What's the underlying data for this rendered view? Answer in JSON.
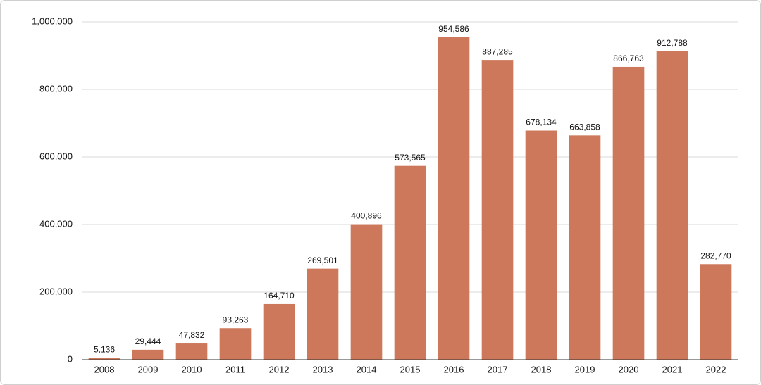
{
  "chart_data": {
    "type": "bar",
    "categories": [
      "2008",
      "2009",
      "2010",
      "2011",
      "2012",
      "2013",
      "2014",
      "2015",
      "2016",
      "2017",
      "2018",
      "2019",
      "2020",
      "2021",
      "2022"
    ],
    "values": [
      5136,
      29444,
      47832,
      93263,
      164710,
      269501,
      400896,
      573565,
      954586,
      887285,
      678134,
      663858,
      866763,
      912788,
      282770
    ],
    "value_labels": [
      "5,136",
      "29,444",
      "47,832",
      "93,263",
      "164,710",
      "269,501",
      "400,896",
      "573,565",
      "954,586",
      "887,285",
      "678,134",
      "663,858",
      "866,763",
      "912,788",
      "282,770"
    ],
    "color": "#cd785b",
    "ylim": [
      0,
      1000000
    ],
    "yticks": [
      0,
      {
        "value": 200000,
        "label": "200,000"
      },
      {
        "value": 400000,
        "label": "400,000"
      },
      {
        "value": 600000,
        "label": "600,000"
      },
      {
        "value": 800000,
        "label": "800,000"
      },
      {
        "value": 1000000,
        "label": "1,000,000"
      }
    ],
    "grid": true
  }
}
